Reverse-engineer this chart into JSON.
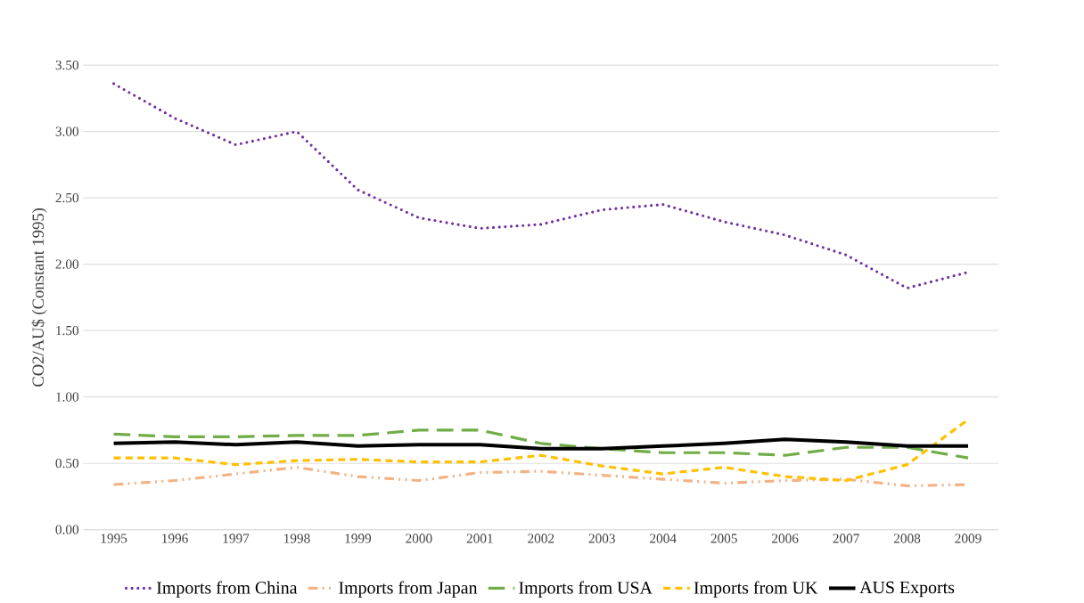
{
  "chart_data": {
    "type": "line",
    "ylabel": "CO2/AU$ (Constant 1995)",
    "categories": [
      "1995",
      "1996",
      "1997",
      "1998",
      "1999",
      "2000",
      "2001",
      "2002",
      "2003",
      "2004",
      "2005",
      "2006",
      "2007",
      "2008",
      "2009"
    ],
    "series": [
      {
        "name": "Imports from China",
        "color": "#7030a0",
        "line_style": "dotted",
        "values": [
          3.36,
          3.1,
          2.9,
          3.0,
          2.56,
          2.35,
          2.27,
          2.3,
          2.41,
          2.45,
          2.32,
          2.22,
          2.07,
          1.82,
          1.94
        ]
      },
      {
        "name": "Imports from Japan",
        "color": "#f4b183",
        "line_style": "dashdotdot",
        "values": [
          0.34,
          0.37,
          0.42,
          0.47,
          0.4,
          0.37,
          0.43,
          0.44,
          0.41,
          0.38,
          0.35,
          0.37,
          0.38,
          0.33,
          0.34
        ]
      },
      {
        "name": "Imports from USA",
        "color": "#70ad47",
        "line_style": "longdashed",
        "values": [
          0.72,
          0.7,
          0.7,
          0.71,
          0.71,
          0.75,
          0.75,
          0.65,
          0.61,
          0.58,
          0.58,
          0.56,
          0.62,
          0.62,
          0.54
        ]
      },
      {
        "name": "Imports from UK",
        "color": "#ffc000",
        "line_style": "dashed",
        "values": [
          0.54,
          0.54,
          0.49,
          0.52,
          0.53,
          0.51,
          0.51,
          0.56,
          0.48,
          0.42,
          0.47,
          0.4,
          0.37,
          0.49,
          0.83
        ]
      },
      {
        "name": "AUS Exports",
        "color": "#000000",
        "line_style": "solid",
        "values": [
          0.65,
          0.66,
          0.64,
          0.66,
          0.63,
          0.64,
          0.64,
          0.61,
          0.61,
          0.63,
          0.65,
          0.68,
          0.66,
          0.63,
          0.63
        ]
      }
    ],
    "ylim": [
      0,
      3.5
    ],
    "yticks": [
      {
        "value": 0,
        "label": "0.00"
      },
      {
        "value": 0.5,
        "label": "0.50"
      },
      {
        "value": 1,
        "label": "1.00"
      },
      {
        "value": 1.5,
        "label": "1.50"
      },
      {
        "value": 2,
        "label": "2.00"
      },
      {
        "value": 2.5,
        "label": "2.50"
      },
      {
        "value": 3,
        "label": "3.00"
      },
      {
        "value": 3.5,
        "label": "3.50"
      }
    ],
    "grid": "y",
    "legend": "bottom",
    "marker": "none"
  }
}
